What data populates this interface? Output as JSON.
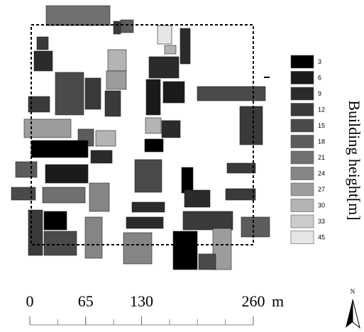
{
  "legend": {
    "title": "Building height[m]",
    "items": [
      {
        "label": "3",
        "color": "#000000"
      },
      {
        "label": "6",
        "color": "#1a1a1a"
      },
      {
        "label": "9",
        "color": "#2b2b2b"
      },
      {
        "label": "12",
        "color": "#3a3a3a"
      },
      {
        "label": "15",
        "color": "#4a4a4a"
      },
      {
        "label": "18",
        "color": "#5c5c5c"
      },
      {
        "label": "21",
        "color": "#707070"
      },
      {
        "label": "24",
        "color": "#858585"
      },
      {
        "label": "27",
        "color": "#9c9c9c"
      },
      {
        "label": "30",
        "color": "#b4b4b4"
      },
      {
        "label": "33",
        "color": "#cccccc"
      },
      {
        "label": "45",
        "color": "#e6e6e6"
      }
    ]
  },
  "scale_bar": {
    "ticks": [
      0,
      65,
      130,
      260
    ],
    "unit": "m"
  },
  "north_arrow": {
    "label": "N"
  }
}
